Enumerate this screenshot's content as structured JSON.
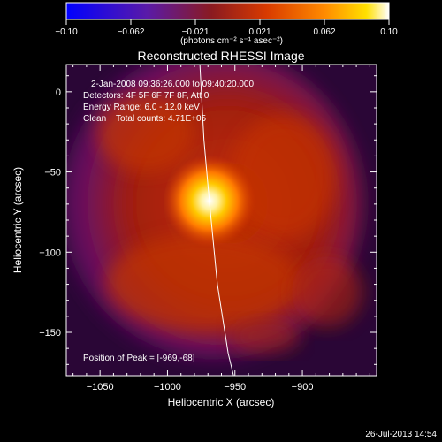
{
  "chart_data": {
    "type": "heatmap",
    "title": "Reconstructed RHESSI Image",
    "xlabel": "Heliocentric X (arcsec)",
    "ylabel": "Heliocentric Y (arcsec)",
    "xlim": [
      -1075,
      -845
    ],
    "ylim": [
      -177,
      17
    ],
    "x_ticks": [
      -1050,
      -1000,
      -950,
      -900
    ],
    "y_ticks": [
      0,
      -50,
      -100,
      -150
    ],
    "colorbar": {
      "range": [
        -0.1,
        0.1
      ],
      "ticks": [
        "-0.10",
        "-0.062",
        "-0.021",
        "0.021",
        "0.062",
        "0.10"
      ],
      "colormap": [
        "#000000",
        "#0000ff",
        "#7b22b0",
        "#cc2f00",
        "#ff6a00",
        "#ffd000",
        "#ffffff"
      ]
    },
    "units_label": "(photons cm⁻² s⁻¹ asec⁻²)",
    "annotations": [
      "2-Jan-2008 09:36:26.000 to 09:40:20.000",
      "Detectors: 4F 5F 6F 7F 8F, Att 0",
      "Energy Range: 6.0 - 12.0 keV",
      "Clean    Total counts: 4.71E+05"
    ],
    "peak": {
      "label": "Position of Peak = [-969,-68]",
      "x": -969,
      "y": -68
    },
    "limb_curve": [
      [
        -976,
        17
      ],
      [
        -973,
        -30
      ],
      [
        -969,
        -68
      ],
      [
        -963,
        -120
      ],
      [
        -955,
        -163
      ],
      [
        -951,
        -177
      ]
    ]
  },
  "timestamp": "26-Jul-2013 14:54"
}
